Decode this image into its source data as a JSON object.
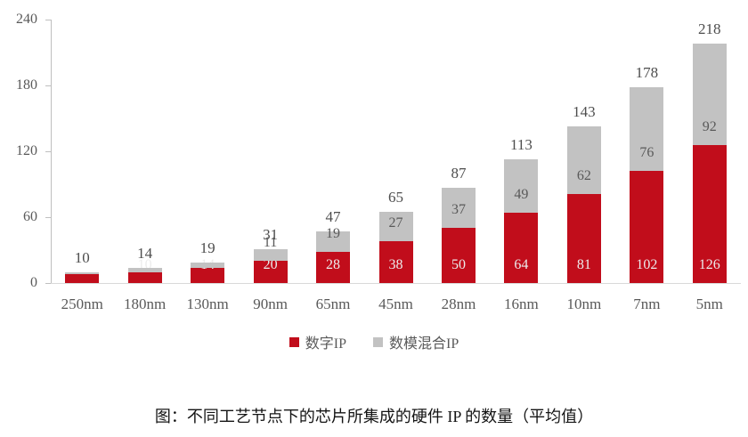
{
  "figure": {
    "caption": "图：不同工艺节点下的芯片所集成的硬件 IP 的数量（平均值）"
  },
  "chart_data": {
    "type": "bar",
    "stacked": true,
    "title": "",
    "xlabel": "",
    "ylabel": "",
    "categories": [
      "250nm",
      "180nm",
      "130nm",
      "90nm",
      "65nm",
      "45nm",
      "28nm",
      "16nm",
      "10nm",
      "7nm",
      "5nm"
    ],
    "series": [
      {
        "name": "数字IP",
        "color": "#c10d1b",
        "label_color": "#ececec",
        "values": [
          8,
          10,
          14,
          20,
          28,
          38,
          50,
          64,
          81,
          102,
          126
        ],
        "value_labels": [
          "",
          "10",
          "14",
          "20",
          "28",
          "38",
          "50",
          "64",
          "81",
          "102",
          "126"
        ]
      },
      {
        "name": "数模混合IP",
        "color": "#c2c2c2",
        "label_color": "#595959",
        "values": [
          2,
          4,
          5,
          11,
          19,
          27,
          37,
          49,
          62,
          76,
          92
        ],
        "value_labels": [
          "",
          "",
          "",
          "11",
          "19",
          "27",
          "37",
          "49",
          "62",
          "76",
          "92"
        ]
      }
    ],
    "totals": [
      "10",
      "14",
      "19",
      "31",
      "47",
      "65",
      "87",
      "113",
      "143",
      "178",
      "218"
    ],
    "yticks": [
      "0",
      "60",
      "120",
      "180",
      "240"
    ],
    "ylim": [
      0,
      240
    ],
    "grid": false,
    "legend_position": "bottom"
  }
}
